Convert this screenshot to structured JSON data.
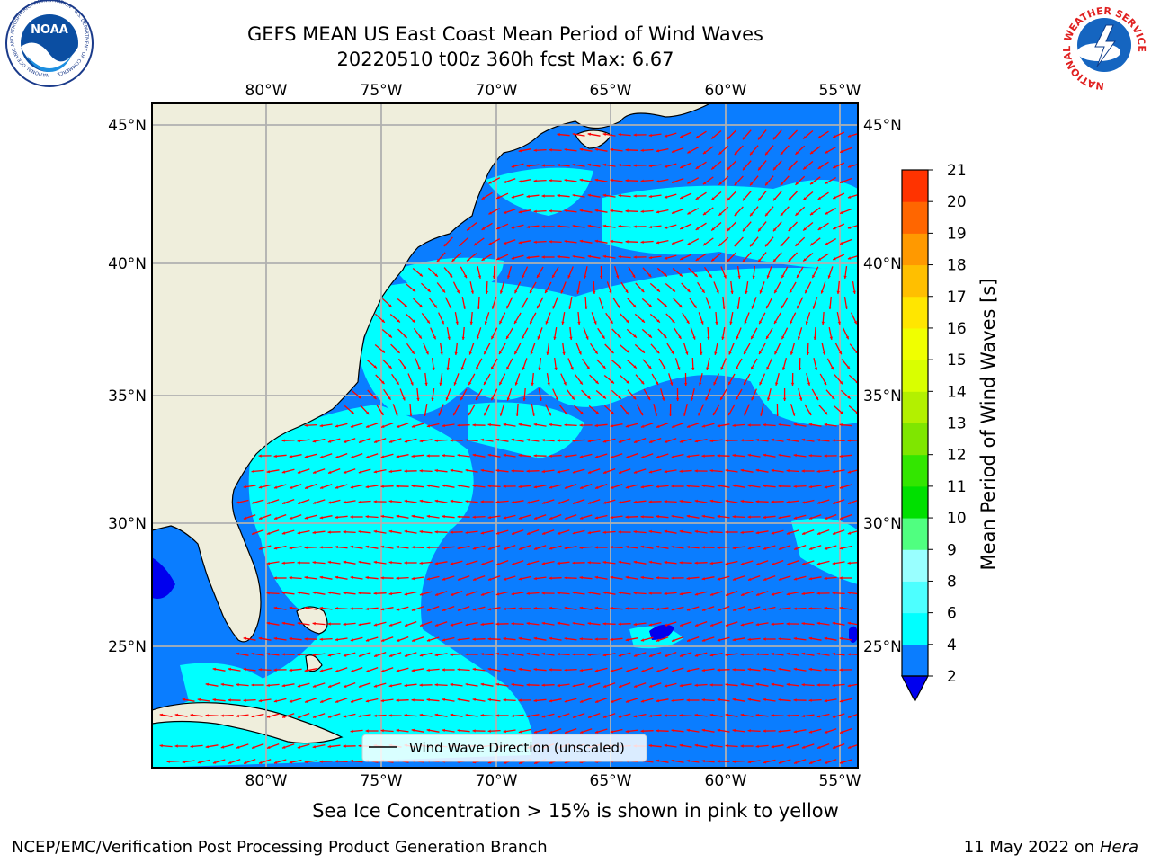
{
  "title": {
    "line1": "GEFS MEAN US East Coast Mean Period of Wind Waves",
    "line2": "20220510 t00z 360h fcst   Max: 6.67"
  },
  "subtitle": "Sea Ice Concentration > 15% is shown in pink to yellow",
  "footer": {
    "left": "NCEP/EMC/Verification Post Processing Product Generation Branch",
    "right_date": "11 May 2022 on ",
    "right_host": "Hera"
  },
  "logos": {
    "noaa_text": "NOAA",
    "noaa_ring": "NATIONAL OCEANIC AND ATMOSPHERIC ADMINISTRATION · U.S. DEPARTMENT OF COMMERCE",
    "nws_ring": "NATIONAL WEATHER SERVICE"
  },
  "map": {
    "lon_labels": [
      "80°W",
      "75°W",
      "70°W",
      "65°W",
      "60°W",
      "55°W"
    ],
    "lat_labels": [
      "45°N",
      "40°N",
      "35°N",
      "30°N",
      "25°N"
    ],
    "legend_label": "Wind Wave Direction (unscaled)",
    "land_color": "#efeedc",
    "ocean_low_color": "#0a7dff",
    "ocean_mid_color": "#00ffff",
    "arrow_color": "#ff0000",
    "grid_color": "#b0b0b0"
  },
  "colorbar": {
    "label": "Mean Period of Wind Waves [s]",
    "ticks": [
      "2",
      "4",
      "6",
      "8",
      "9",
      "10",
      "11",
      "12",
      "13",
      "14",
      "15",
      "16",
      "17",
      "18",
      "19",
      "20",
      "21"
    ],
    "colors": [
      "#0a7dff",
      "#00ffff",
      "#4dffff",
      "#99ffff",
      "#50ff80",
      "#00e000",
      "#33e600",
      "#7fe600",
      "#b3f000",
      "#d9ff00",
      "#f0ff00",
      "#ffe600",
      "#ffbf00",
      "#ff9900",
      "#ff6600",
      "#ff3300",
      "#ff0000"
    ],
    "underflow_color": "#0000ee"
  }
}
